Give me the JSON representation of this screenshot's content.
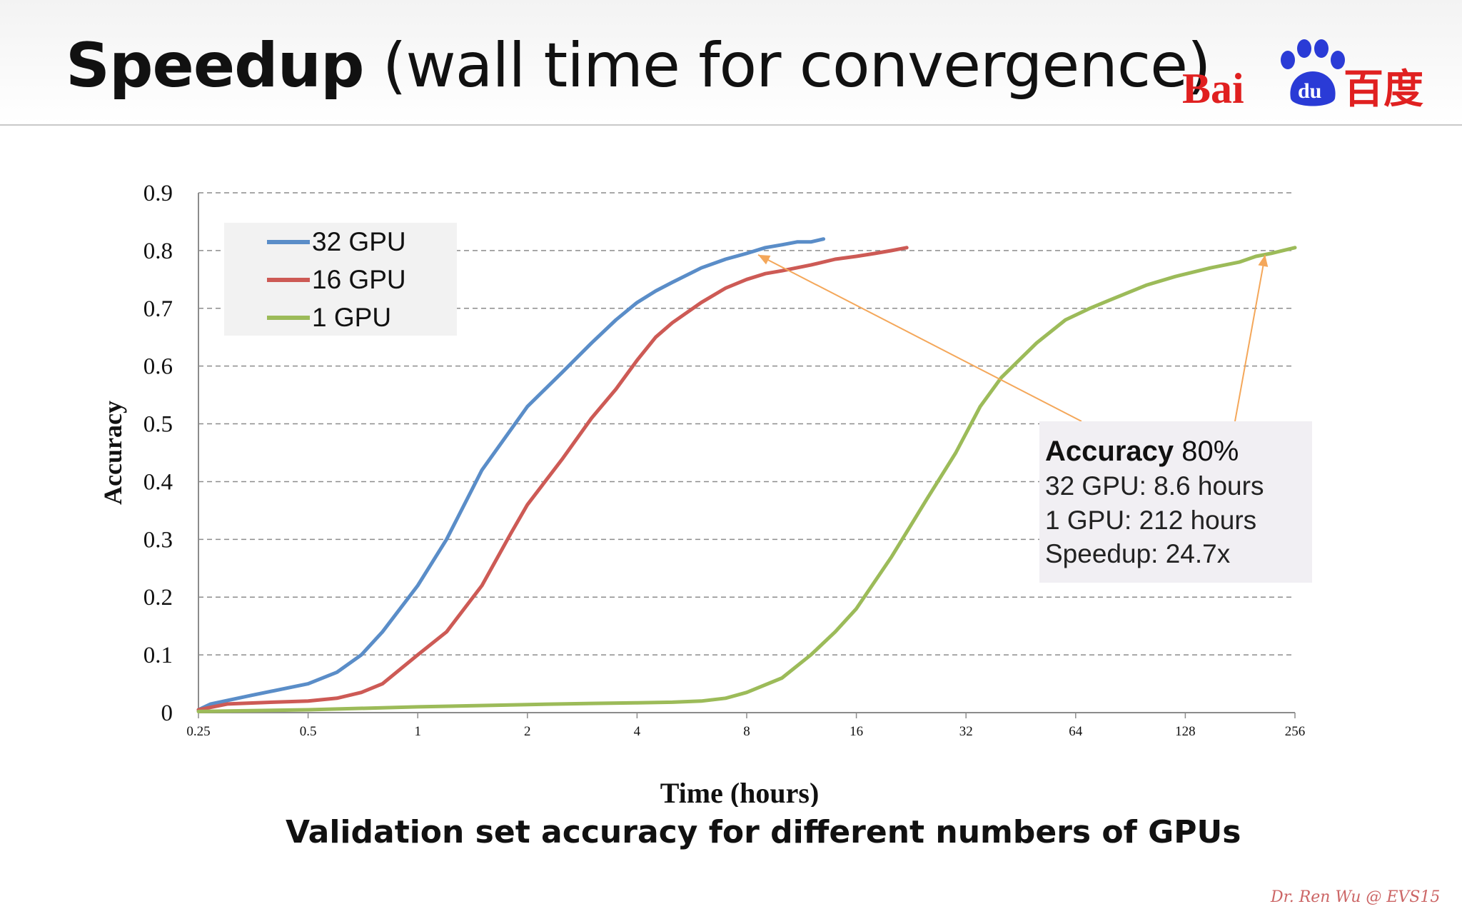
{
  "slide": {
    "title_main": "Speedup",
    "title_rest": "(wall time for convergence)",
    "caption": "Validation set accuracy for different numbers of GPUs",
    "credit": "Dr. Ren Wu @ EVS15"
  },
  "logo": {
    "text_bai": "Bai",
    "text_du": "du",
    "text_cn": "百度",
    "color_red": "#e02020",
    "color_blue": "#2a3bd6"
  },
  "colors": {
    "series_32": "#5a8dc8",
    "series_16": "#cd5a55",
    "series_1": "#9cbb59",
    "annotation_arrow": "#f4a75a",
    "grid": "#8c8c8c"
  },
  "chart_data": {
    "type": "line",
    "xlabel": "Time (hours)",
    "ylabel": "Accuracy",
    "x_scale": "log2",
    "xlim": [
      0.25,
      256
    ],
    "ylim": [
      0,
      0.9
    ],
    "x_ticks": [
      "0.25",
      "0.5",
      "1",
      "2",
      "4",
      "8",
      "16",
      "32",
      "64",
      "128",
      "256"
    ],
    "y_ticks": [
      "0",
      "0.1",
      "0.2",
      "0.3",
      "0.4",
      "0.5",
      "0.6",
      "0.7",
      "0.8",
      "0.9"
    ],
    "grid": "horizontal dashed",
    "legend_position": "top-left",
    "series": [
      {
        "name": "32 GPU",
        "color": "#5a8dc8",
        "x": [
          0.25,
          0.27,
          0.35,
          0.5,
          0.6,
          0.7,
          0.8,
          1,
          1.2,
          1.5,
          2,
          2.5,
          3,
          3.5,
          4,
          4.5,
          5,
          6,
          7,
          8,
          9,
          10,
          11,
          12,
          13
        ],
        "y": [
          0.005,
          0.015,
          0.03,
          0.05,
          0.07,
          0.1,
          0.14,
          0.22,
          0.3,
          0.42,
          0.53,
          0.59,
          0.64,
          0.68,
          0.71,
          0.73,
          0.745,
          0.77,
          0.785,
          0.795,
          0.805,
          0.81,
          0.815,
          0.815,
          0.82
        ]
      },
      {
        "name": "16 GPU",
        "color": "#cd5a55",
        "x": [
          0.25,
          0.3,
          0.4,
          0.5,
          0.6,
          0.7,
          0.8,
          1,
          1.2,
          1.5,
          1.8,
          2,
          2.5,
          3,
          3.5,
          4,
          4.5,
          5,
          6,
          7,
          8,
          9,
          10,
          12,
          14,
          16,
          18,
          20,
          22
        ],
        "y": [
          0.005,
          0.015,
          0.018,
          0.02,
          0.025,
          0.035,
          0.05,
          0.1,
          0.14,
          0.22,
          0.31,
          0.36,
          0.44,
          0.51,
          0.56,
          0.61,
          0.65,
          0.675,
          0.71,
          0.735,
          0.75,
          0.76,
          0.765,
          0.775,
          0.785,
          0.79,
          0.795,
          0.8,
          0.805
        ]
      },
      {
        "name": "1 GPU",
        "color": "#9cbb59",
        "x": [
          0.25,
          0.5,
          1,
          2,
          3,
          4,
          5,
          6,
          7,
          8,
          10,
          12,
          14,
          16,
          20,
          25,
          30,
          35,
          40,
          50,
          60,
          70,
          80,
          100,
          120,
          150,
          180,
          200,
          220,
          256
        ],
        "y": [
          0.002,
          0.005,
          0.01,
          0.014,
          0.016,
          0.017,
          0.018,
          0.02,
          0.025,
          0.035,
          0.06,
          0.1,
          0.14,
          0.18,
          0.27,
          0.37,
          0.45,
          0.53,
          0.58,
          0.64,
          0.68,
          0.7,
          0.715,
          0.74,
          0.755,
          0.77,
          0.78,
          0.79,
          0.795,
          0.805
        ]
      }
    ],
    "annotation": {
      "heading_bold": "Accuracy",
      "heading_value": "80%",
      "lines": [
        "32 GPU: 8.6 hours",
        "1 GPU: 212 hours",
        "Speedup: 24.7x"
      ],
      "arrow_targets": [
        {
          "x": 8.6,
          "y": 0.8
        },
        {
          "x": 212,
          "y": 0.8
        }
      ]
    }
  }
}
